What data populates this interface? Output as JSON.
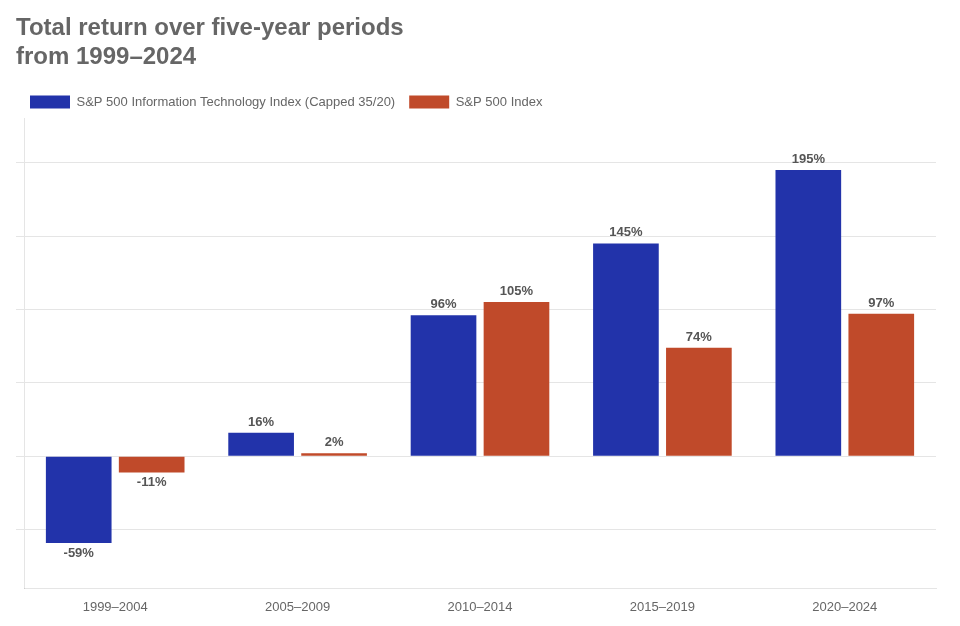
{
  "chart_data": {
    "type": "bar",
    "title": "Total return over five-year periods",
    "subtitle": "from 1999–2024",
    "categories": [
      "1999–2004",
      "2005–2009",
      "2010–2014",
      "2015–2019",
      "2020–2024"
    ],
    "series": [
      {
        "name": "S&P 500 Information Technology Index (Capped 35/20)",
        "color": "#2233aa",
        "values": [
          -59,
          16,
          96,
          145,
          195
        ],
        "value_labels": [
          "-59%",
          "16%",
          "96%",
          "145%",
          "195%"
        ]
      },
      {
        "name": "S&P 500 Index",
        "color": "#c04a2a",
        "values": [
          -11,
          2,
          105,
          74,
          97
        ],
        "value_labels": [
          "-11%",
          "2%",
          "105%",
          "74%",
          "97%"
        ]
      }
    ],
    "ylim": [
      -90,
      230
    ],
    "yticks": [
      -50,
      0,
      50,
      100,
      150,
      200
    ],
    "grid": true,
    "legend": "top-left",
    "data_labels": true,
    "tick_labels": "x"
  }
}
